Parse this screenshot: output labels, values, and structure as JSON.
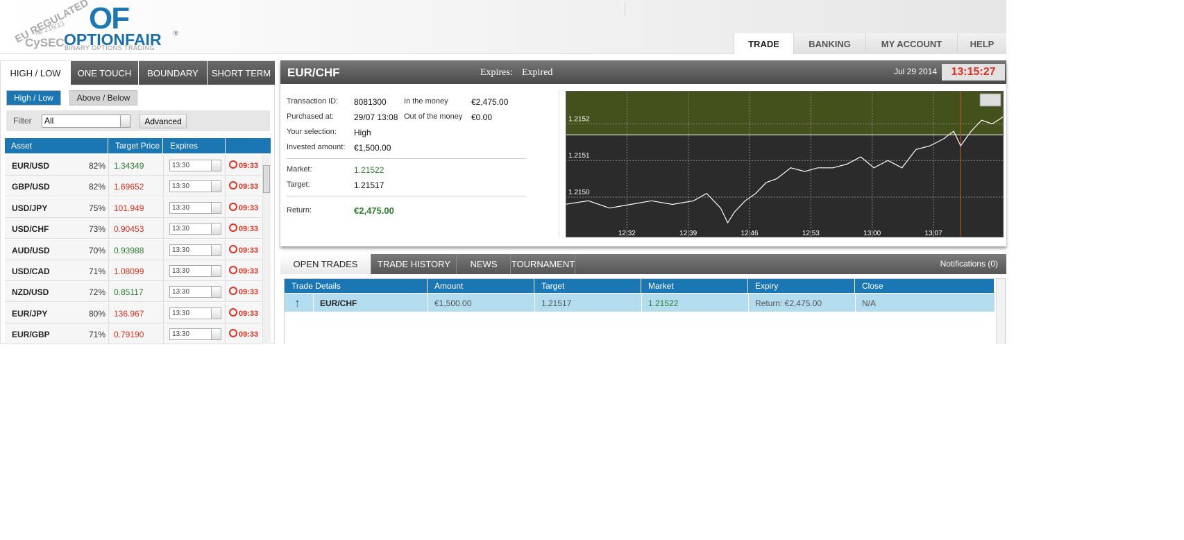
{
  "header": {
    "badge": "EU REGULATED",
    "license": "№ 216/13",
    "regulator": "CySEC",
    "brand_short": "OF",
    "brand": "OPTIONFAIR",
    "trademark": "®",
    "tagline": "BINARY OPTIONS TRADING",
    "nav": [
      "TRADE",
      "BANKING",
      "MY ACCOUNT",
      "HELP"
    ]
  },
  "left_panel": {
    "tabs": [
      "HIGH / LOW",
      "ONE TOUCH",
      "BOUNDARY",
      "SHORT TERM"
    ],
    "subtabs": [
      "High / Low",
      "Above / Below"
    ],
    "filter_label": "Filter",
    "filter_value": "All",
    "advanced": "Advanced",
    "columns": [
      "Asset",
      "Target Price",
      "Expires"
    ],
    "assets": [
      {
        "name": "EUR/USD",
        "payout": "82%",
        "price": "1.34349",
        "price_color": "#2e7d32",
        "expiry": "13:30",
        "countdown": "09:33"
      },
      {
        "name": "GBP/USD",
        "payout": "82%",
        "price": "1.69652",
        "price_color": "#e0301e",
        "expiry": "13:30",
        "countdown": "09:33"
      },
      {
        "name": "USD/JPY",
        "payout": "75%",
        "price": "101.949",
        "price_color": "#e0301e",
        "expiry": "13:30",
        "countdown": "09:33"
      },
      {
        "name": "USD/CHF",
        "payout": "73%",
        "price": "0.90453",
        "price_color": "#e0301e",
        "expiry": "13:30",
        "countdown": "09:33"
      },
      {
        "name": "AUD/USD",
        "payout": "70%",
        "price": "0.93988",
        "price_color": "#2e7d32",
        "expiry": "13:30",
        "countdown": "09:33"
      },
      {
        "name": "USD/CAD",
        "payout": "71%",
        "price": "1.08099",
        "price_color": "#e0301e",
        "expiry": "13:30",
        "countdown": "09:33"
      },
      {
        "name": "NZD/USD",
        "payout": "72%",
        "price": "0.85117",
        "price_color": "#2e7d32",
        "expiry": "13:30",
        "countdown": "09:33"
      },
      {
        "name": "EUR/JPY",
        "payout": "80%",
        "price": "136.967",
        "price_color": "#e0301e",
        "expiry": "13:30",
        "countdown": "09:33"
      },
      {
        "name": "EUR/GBP",
        "payout": "71%",
        "price": "0.79190",
        "price_color": "#e0301e",
        "expiry": "13:30",
        "countdown": "09:33"
      }
    ]
  },
  "trade_panel": {
    "asset": "EUR/CHF",
    "expires_label": "Expires:",
    "expires_value": "Expired",
    "date": "Jul 29 2014",
    "time": "13:15:27",
    "details": {
      "transaction_label": "Transaction ID:",
      "transaction": "8081300",
      "purchased_label": "Purchased at:",
      "purchased": "29/07 13:08",
      "selection_label": "Your selection:",
      "selection": "High",
      "invested_label": "Invested amount:",
      "invested": "€1,500.00",
      "in_money_label": "In the money",
      "in_money": "€2,475.00",
      "out_money_label": "Out of the money",
      "out_money": "€0.00",
      "market_label": "Market:",
      "market": 1.21522,
      "target_label": "Target:",
      "target": 1.21517,
      "return_label": "Return:",
      "return": "€2,475.00"
    },
    "price_chart": {
      "type": "line",
      "color": "#ffffff",
      "grid": true,
      "above_color": "#43511c",
      "below_color": "#2b2b2b",
      "x": [
        744.9,
        747.6,
        750.0,
        752.4,
        754.8,
        757.2,
        759.6,
        761.1,
        762.7,
        763.5,
        764.3,
        765.5,
        766.7,
        767.9,
        769.1,
        770.7,
        772.3,
        773.8,
        775.5,
        777.1,
        778.7,
        780.2,
        781.8,
        783.4,
        785.0,
        786.6,
        788.2,
        789.3,
        790.1,
        791.3,
        792.5,
        793.7,
        795.0
      ],
      "values": [
        1.21498,
        1.21499,
        1.21497,
        1.21498,
        1.21499,
        1.21498,
        1.21499,
        1.21501,
        1.21497,
        1.21493,
        1.21496,
        1.21499,
        1.21501,
        1.21504,
        1.21505,
        1.21508,
        1.21507,
        1.21508,
        1.21508,
        1.21509,
        1.21511,
        1.21508,
        1.2151,
        1.21508,
        1.21513,
        1.21514,
        1.21516,
        1.21518,
        1.21514,
        1.21518,
        1.21521,
        1.2152,
        1.21522
      ],
      "xlim": [
        745,
        795
      ],
      "ylim": [
        1.21489,
        1.21529
      ],
      "marker_x": 790.1,
      "xticks": [
        {
          "value": 752,
          "label": "12:32"
        },
        {
          "value": 759,
          "label": "12:39"
        },
        {
          "value": 766,
          "label": "12:46"
        },
        {
          "value": 773,
          "label": "12:53"
        },
        {
          "value": 780,
          "label": "13:00"
        },
        {
          "value": 787,
          "label": "13:07"
        }
      ],
      "yticks": [
        {
          "value": 1.215,
          "label": "1.2150"
        },
        1.2151,
        1.2152
      ]
    }
  },
  "trades_panel": {
    "tabs": [
      "OPEN TRADES",
      "TRADE HISTORY",
      "NEWS",
      "TOURNAMENT"
    ],
    "notifications": "Notifications (0)",
    "columns": [
      "Trade Details",
      "Amount",
      "Target",
      "Market",
      "Expiry",
      "Close"
    ],
    "rows": [
      {
        "asset": "EUR/CHF",
        "amount": "€1,500.00",
        "target": "1.21517",
        "market": "1.21522",
        "expiry": "Return: €2,475.00",
        "close": "N/A"
      }
    ]
  }
}
